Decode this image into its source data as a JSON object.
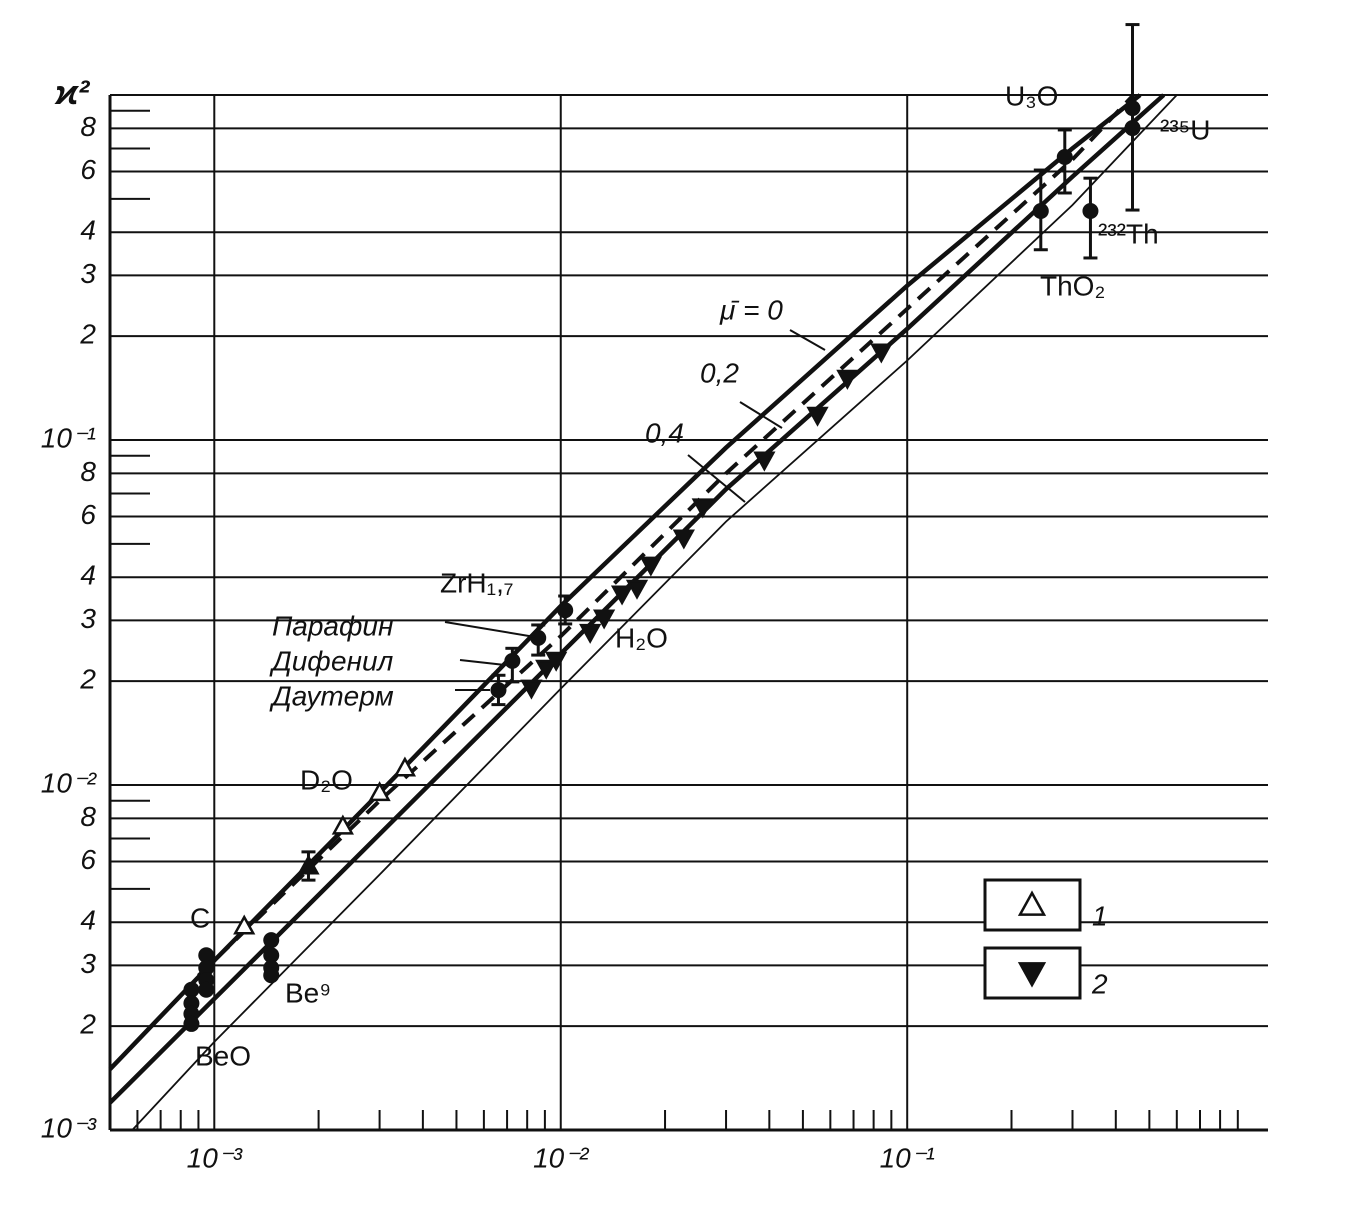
{
  "chart_data": {
    "type": "line",
    "ylabel": "ϰ²",
    "log_x": true,
    "log_y": true,
    "grid": true,
    "xlim": [
      0.0005,
      1.1
    ],
    "ylim": [
      0.001,
      1
    ],
    "xticks": [
      {
        "value": 0.001,
        "label": "10⁻³"
      },
      {
        "value": 0.01,
        "label": "10⁻²"
      },
      {
        "value": 0.1,
        "label": "10⁻¹"
      }
    ],
    "xticks_minor": [
      0.0006,
      0.0007,
      0.0008,
      0.0009,
      0.002,
      0.003,
      0.004,
      0.005,
      0.006,
      0.007,
      0.008,
      0.009,
      0.02,
      0.03,
      0.04,
      0.05,
      0.06,
      0.07,
      0.08,
      0.09,
      0.2,
      0.3,
      0.4,
      0.5,
      0.6,
      0.7,
      0.8,
      0.9
    ],
    "yticks": [
      {
        "value": 0.001,
        "label": "10⁻³"
      },
      {
        "value": 0.002,
        "label": "2"
      },
      {
        "value": 0.003,
        "label": "3"
      },
      {
        "value": 0.004,
        "label": "4"
      },
      {
        "value": 0.006,
        "label": "6"
      },
      {
        "value": 0.008,
        "label": "8"
      },
      {
        "value": 0.01,
        "label": "10⁻²"
      },
      {
        "value": 0.02,
        "label": "2"
      },
      {
        "value": 0.03,
        "label": "3"
      },
      {
        "value": 0.04,
        "label": "4"
      },
      {
        "value": 0.06,
        "label": "6"
      },
      {
        "value": 0.08,
        "label": "8"
      },
      {
        "value": 0.1,
        "label": "10⁻¹"
      },
      {
        "value": 0.2,
        "label": "2"
      },
      {
        "value": 0.3,
        "label": "3"
      },
      {
        "value": 0.4,
        "label": "4"
      },
      {
        "value": 0.6,
        "label": "6"
      },
      {
        "value": 0.8,
        "label": "8"
      },
      1
    ],
    "yticks_minor": [
      0.005,
      0.007,
      0.009,
      0.05,
      0.07,
      0.09,
      0.5,
      0.7,
      0.9
    ],
    "series": [
      {
        "name": "μ̄ = 0",
        "color": "#111",
        "width": 4.5,
        "x": [
          0.0005,
          0.001,
          0.003,
          0.01,
          0.03,
          0.1,
          0.3,
          0.47
        ],
        "values": [
          0.0015,
          0.0031,
          0.0095,
          0.033,
          0.095,
          0.28,
          0.7,
          1.0
        ]
      },
      {
        "name": "0,2",
        "color": "#111",
        "width": 4.5,
        "x": [
          0.0005,
          0.001,
          0.003,
          0.01,
          0.03,
          0.1,
          0.3,
          0.55
        ],
        "values": [
          0.0012,
          0.0024,
          0.0072,
          0.024,
          0.072,
          0.21,
          0.58,
          1.0
        ]
      },
      {
        "name": "0,4",
        "color": "#111",
        "width": 1.8,
        "x": [
          0.00058,
          0.001,
          0.003,
          0.01,
          0.03,
          0.1,
          0.3,
          0.6
        ],
        "values": [
          0.001,
          0.0018,
          0.0055,
          0.019,
          0.058,
          0.17,
          0.48,
          1.0
        ]
      },
      {
        "color": "#111",
        "width": 4,
        "dash": true,
        "x": [
          0.0009,
          0.003,
          0.01,
          0.03,
          0.1,
          0.3,
          0.45
        ],
        "values": [
          0.0028,
          0.009,
          0.027,
          0.08,
          0.24,
          0.65,
          1.0
        ]
      },
      {
        "name": "1",
        "marker": "triangle-up-open",
        "color": "#111",
        "x": [
          0.00122,
          0.00235,
          0.003,
          0.00355
        ],
        "values": [
          0.0039,
          0.0076,
          0.0095,
          0.0112
        ]
      },
      {
        "name": "2",
        "marker": "triangle-down",
        "color": "#111",
        "x": [
          0.00823,
          0.00908,
          0.0097,
          0.01216,
          0.01334,
          0.01503,
          0.0166,
          0.0182,
          0.02266,
          0.0257,
          0.0387,
          0.0551,
          0.0672,
          0.0842
        ],
        "values": [
          0.0191,
          0.0218,
          0.023,
          0.0277,
          0.0305,
          0.0358,
          0.0372,
          0.0434,
          0.052,
          0.064,
          0.0875,
          0.118,
          0.151,
          0.18
        ]
      },
      {
        "marker": "circle",
        "color": "#111",
        "x": [
          0.00661,
          0.00725,
          0.00861,
          0.0103,
          0.243,
          0.285,
          0.338,
          0.447
        ],
        "values": [
          0.01884,
          0.0229,
          0.0267,
          0.0321,
          0.461,
          0.661,
          0.461,
          0.916
        ],
        "ylow": [
          0.0171,
          0.0199,
          0.0238,
          0.0293,
          0.356,
          0.52,
          0.337,
          0.464
        ],
        "yhigh": [
          0.0208,
          0.0249,
          0.0291,
          0.0353,
          0.606,
          0.792,
          0.574,
          1.6
        ]
      },
      {
        "marker": "circle",
        "color": "#111",
        "x": [
          0.000948,
          0.000948,
          0.000948,
          0.000948,
          0.000859,
          0.000859,
          0.000859,
          0.000859,
          0.00146,
          0.00146,
          0.00146,
          0.00146,
          0.447
        ],
        "values": [
          0.00321,
          0.00295,
          0.00272,
          0.00255,
          0.00255,
          0.00233,
          0.00217,
          0.00203,
          0.00355,
          0.00321,
          0.00295,
          0.00281,
          0.802
        ]
      },
      {
        "marker": "triangle-up",
        "color": "#111",
        "x": [
          0.00187
        ],
        "values": [
          0.00582
        ],
        "ylow": [
          0.0053
        ],
        "yhigh": [
          0.0064
        ]
      }
    ],
    "annotations": [
      "U₃O",
      "²³⁵U",
      "²³²Th",
      "ThO₂",
      "ZrH₁,₇",
      "Парафин",
      "Дифенил",
      "Даутерм",
      "H₂O",
      "D₂O",
      "C",
      "Be⁹",
      "BeO"
    ]
  }
}
